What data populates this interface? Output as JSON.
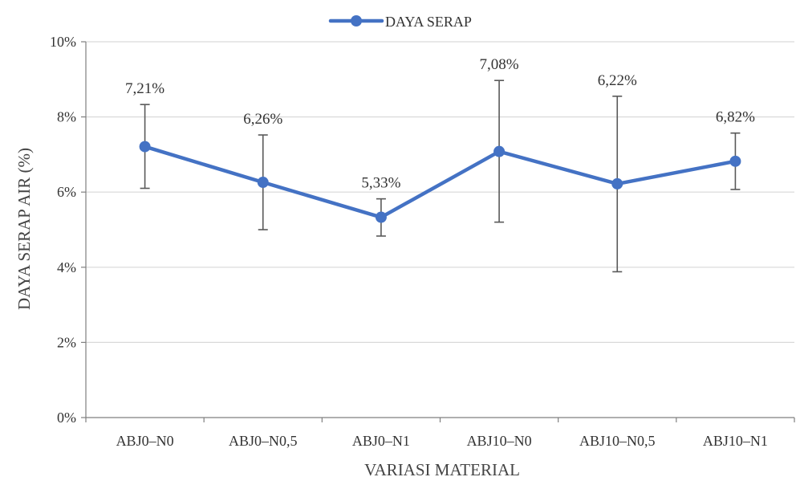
{
  "chart_data": {
    "type": "line",
    "title": "",
    "xlabel": "VARIASI MATERIAL",
    "ylabel": "DAYA SERAP AIR (%)",
    "categories": [
      "ABJ0–N0",
      "ABJ0–N0,5",
      "ABJ0–N1",
      "ABJ10–N0",
      "ABJ10–N0,5",
      "ABJ10–N1"
    ],
    "series": [
      {
        "name": "DAYA SERAP",
        "values": [
          7.21,
          6.26,
          5.33,
          7.08,
          6.22,
          6.82
        ],
        "labels": [
          "7,21%",
          "6,26%",
          "5,33%",
          "7,08%",
          "6,22%",
          "6,82%"
        ],
        "error_low": [
          6.1,
          5.0,
          4.83,
          5.2,
          3.88,
          6.07
        ],
        "error_high": [
          8.33,
          7.52,
          5.82,
          8.97,
          8.55,
          7.57
        ],
        "color": "#4472c4"
      }
    ],
    "ylim": [
      0,
      10
    ],
    "yticks": [
      0,
      2,
      4,
      6,
      8,
      10
    ],
    "ytick_labels": [
      "0%",
      "2%",
      "4%",
      "6%",
      "8%",
      "10%"
    ],
    "grid": true,
    "legend_position": "top",
    "error_bar_color": "#595959",
    "grid_color": "#d9d9d9",
    "axis_color": "#7f7f7f"
  }
}
